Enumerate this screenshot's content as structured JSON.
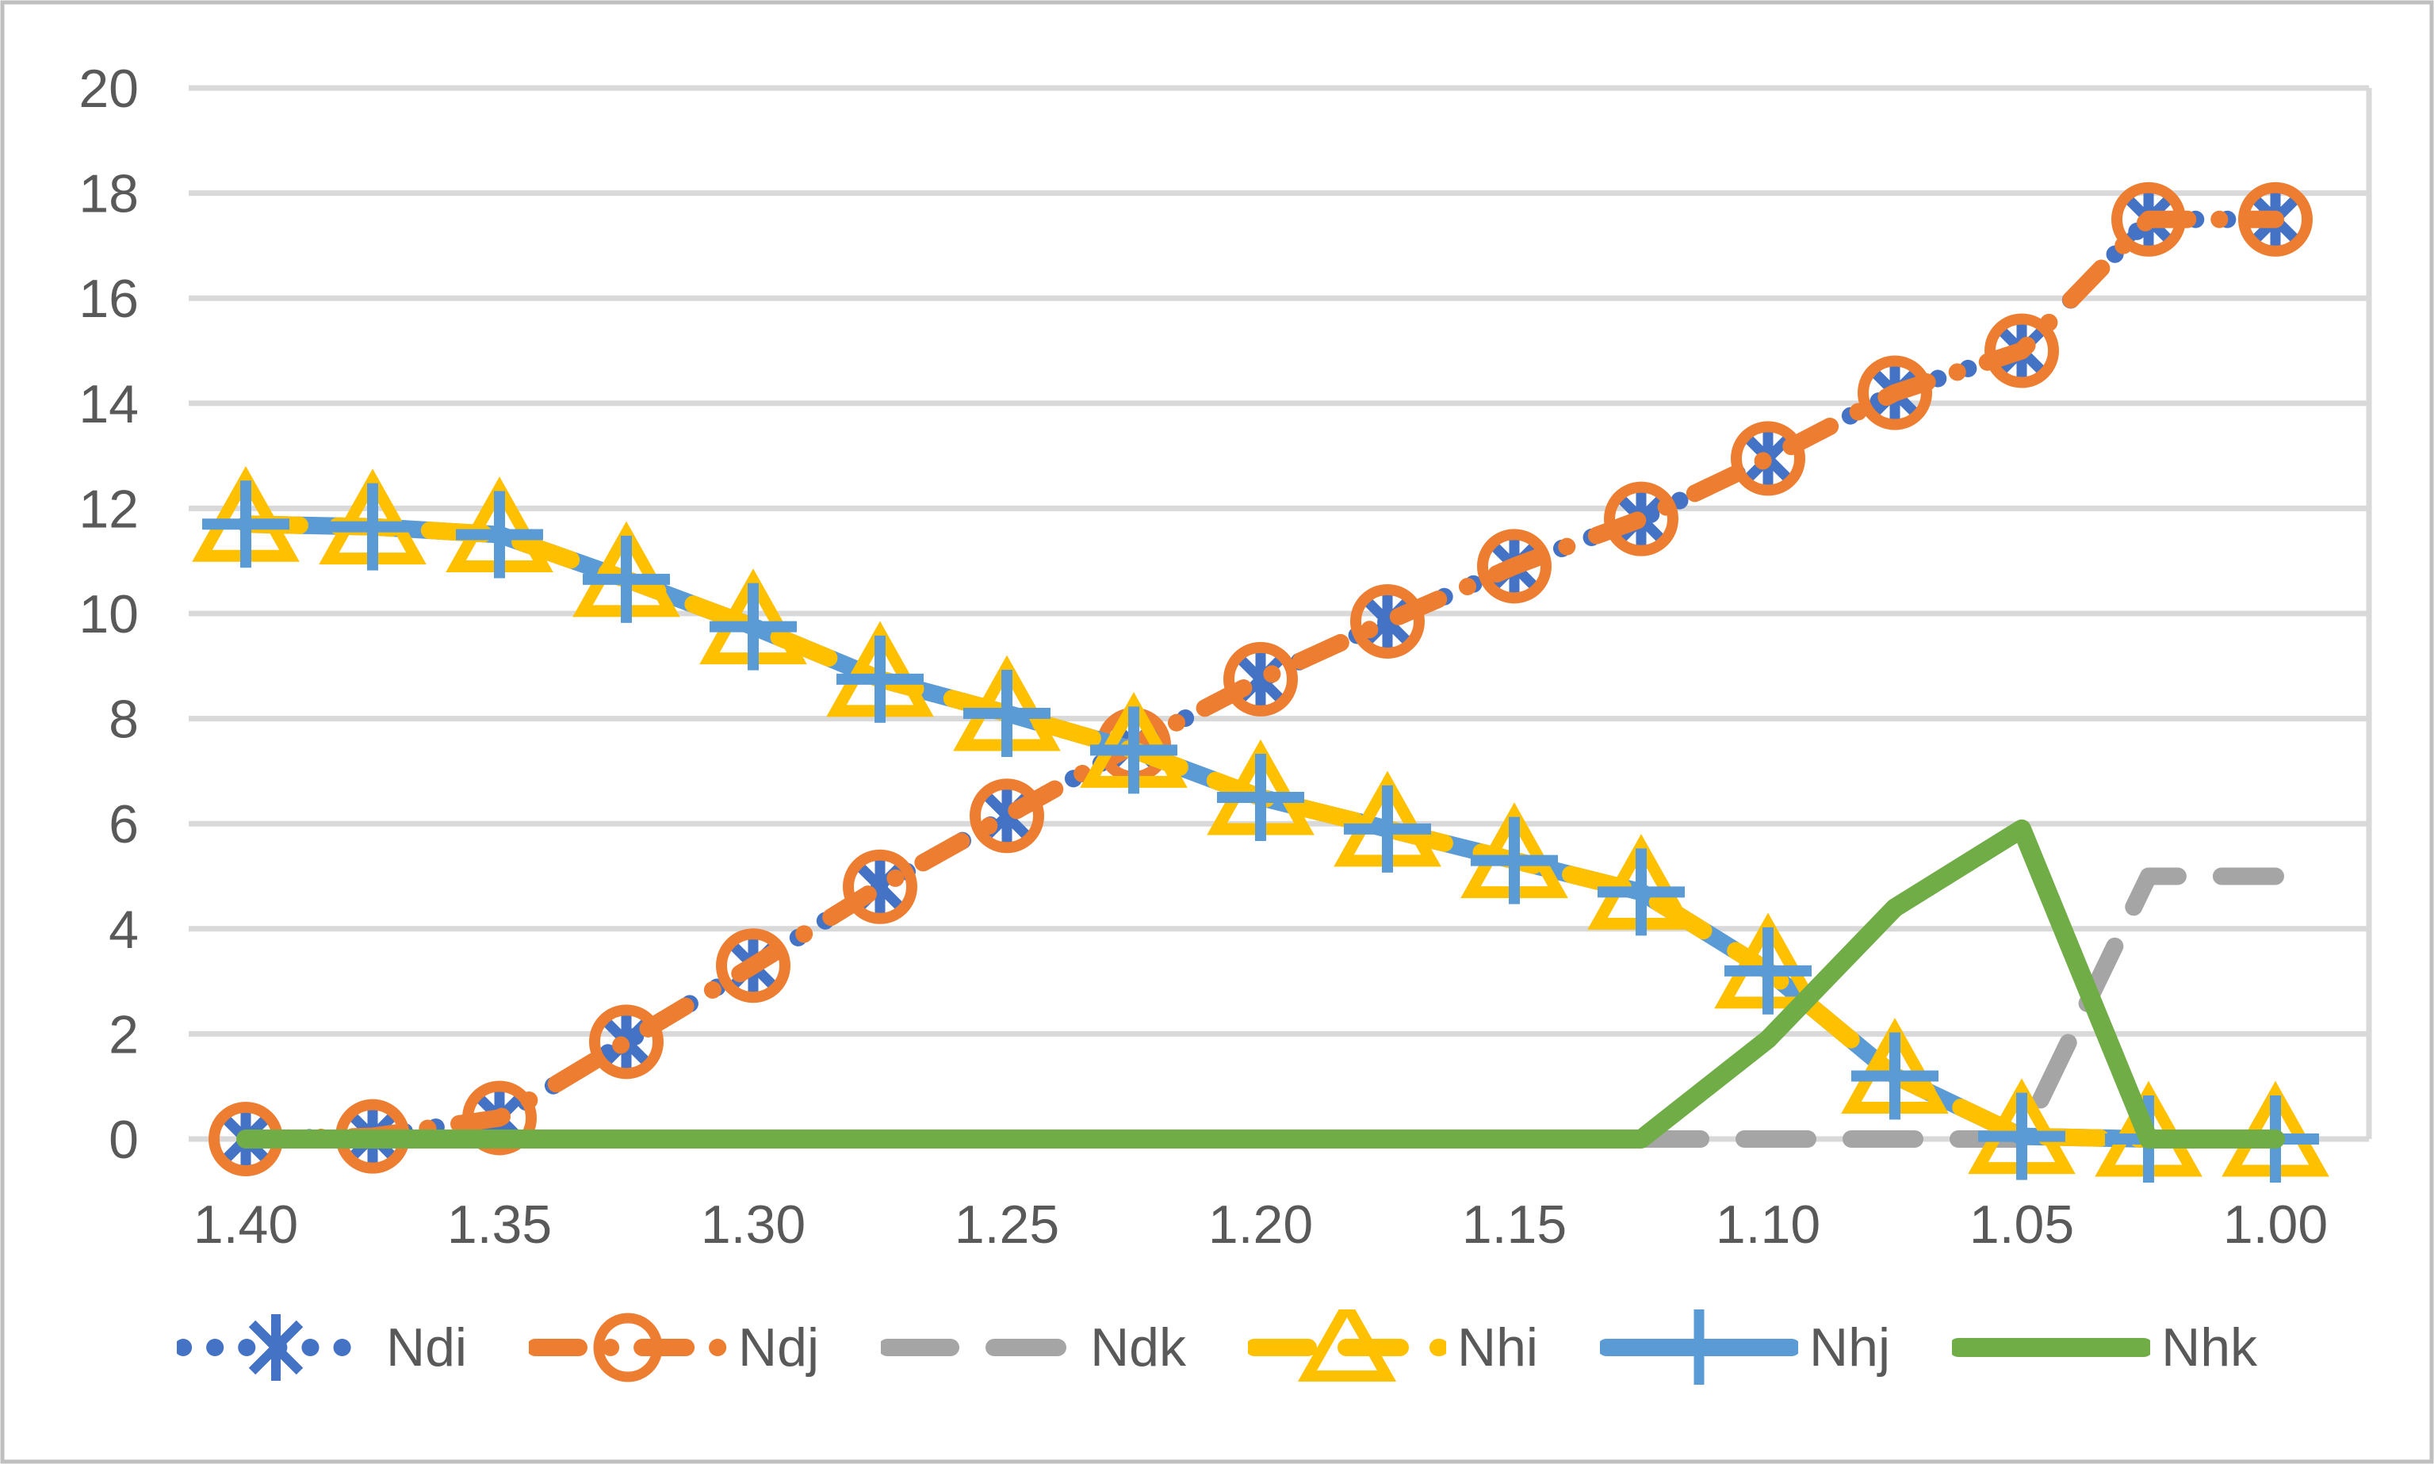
{
  "chart_data": {
    "type": "line",
    "title": "",
    "xlabel": "",
    "ylabel": "",
    "grid": "horizontal",
    "legend_position": "bottom",
    "x_axis": {
      "direction": "reversed",
      "tick_labels": [
        "1.40",
        "1.35",
        "1.30",
        "1.25",
        "1.20",
        "1.15",
        "1.10",
        "1.05",
        "1.00"
      ],
      "tick_values": [
        1.4,
        1.35,
        1.3,
        1.25,
        1.2,
        1.15,
        1.1,
        1.05,
        1.0
      ]
    },
    "y_axis": {
      "tick_labels": [
        "0",
        "2",
        "4",
        "6",
        "8",
        "10",
        "12",
        "14",
        "16",
        "18",
        "20"
      ],
      "tick_values": [
        0,
        2,
        4,
        6,
        8,
        10,
        12,
        14,
        16,
        18,
        20
      ],
      "ylim": [
        0,
        20
      ]
    },
    "x": [
      1.4,
      1.375,
      1.35,
      1.325,
      1.3,
      1.275,
      1.25,
      1.225,
      1.2,
      1.175,
      1.15,
      1.125,
      1.1,
      1.075,
      1.05,
      1.025,
      1.0
    ],
    "series": [
      {
        "name": "Ndi",
        "color": "#4472C4",
        "line": "dot",
        "marker": "asterisk",
        "values": [
          0,
          0.05,
          0.4,
          1.85,
          3.3,
          4.8,
          6.15,
          7.5,
          8.75,
          9.85,
          10.9,
          11.8,
          12.95,
          14.2,
          15.0,
          17.5,
          17.5
        ]
      },
      {
        "name": "Ndj",
        "color": "#ED7D31",
        "line": "dashdot",
        "marker": "circle",
        "values": [
          0,
          0.05,
          0.4,
          1.85,
          3.3,
          4.8,
          6.15,
          7.5,
          8.75,
          9.85,
          10.9,
          11.8,
          12.95,
          14.2,
          15.0,
          17.5,
          17.5
        ]
      },
      {
        "name": "Ndk",
        "color": "#A5A5A5",
        "line": "dash",
        "marker": "none",
        "values": [
          0,
          0,
          0,
          0,
          0,
          0,
          0,
          0,
          0,
          0,
          0,
          0,
          0,
          0,
          0,
          5,
          5
        ]
      },
      {
        "name": "Nhi",
        "color": "#FFC000",
        "line": "dash",
        "marker": "triangle",
        "values": [
          11.7,
          11.65,
          11.5,
          10.65,
          9.75,
          8.75,
          8.1,
          7.4,
          6.5,
          5.9,
          5.3,
          4.7,
          3.2,
          1.2,
          0.05,
          0,
          0
        ]
      },
      {
        "name": "Nhj",
        "color": "#5B9BD5",
        "line": "solid",
        "marker": "plus",
        "values": [
          11.7,
          11.65,
          11.5,
          10.65,
          9.75,
          8.75,
          8.1,
          7.4,
          6.5,
          5.9,
          5.3,
          4.7,
          3.2,
          1.2,
          0.05,
          0,
          0
        ]
      },
      {
        "name": "Nhk",
        "color": "#70AD47",
        "line": "solid",
        "marker": "none",
        "values": [
          0,
          0,
          0,
          0,
          0,
          0,
          0,
          0,
          0,
          0,
          0,
          0,
          1.9,
          4.4,
          5.9,
          0,
          0
        ]
      }
    ]
  },
  "legend": {
    "items": [
      {
        "label": "Ndi"
      },
      {
        "label": "Ndj"
      },
      {
        "label": "Ndk"
      },
      {
        "label": "Nhi"
      },
      {
        "label": "Nhj"
      },
      {
        "label": "Nhk"
      }
    ]
  },
  "colors": {
    "gridline": "#D9D9D9",
    "border": "#BFBFBF",
    "axis_text": "#595959",
    "background": "#FFFFFF"
  }
}
